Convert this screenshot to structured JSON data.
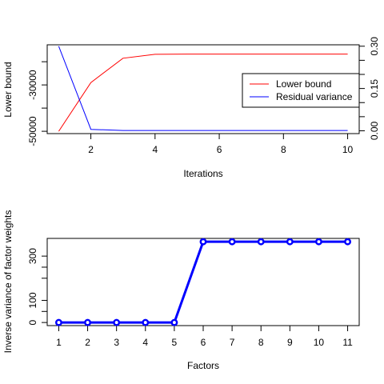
{
  "chart_data": [
    {
      "type": "line",
      "xlabel": "Iterations",
      "ylabel_left": "Lower bound",
      "ylabel_right": "",
      "x_ticks": [
        2,
        4,
        6,
        8,
        10
      ],
      "y_left_ticks": [
        -50000,
        -30000
      ],
      "y_left_minor_ticks": [
        -40000,
        -20000
      ],
      "y_right_ticks": [
        0.0,
        0.15,
        0.3
      ],
      "y_right_tick_labels": [
        "0.00",
        "0.15",
        "0.30"
      ],
      "y_right_minor_ticks": [
        0.05,
        0.1,
        0.2,
        0.25
      ],
      "xlim": [
        0.64,
        10.36
      ],
      "y_left_lim": [
        -51000,
        -12700
      ],
      "y_right_lim": [
        -0.01,
        0.305
      ],
      "legend_position": "right",
      "series": [
        {
          "name": "Lower bound",
          "axis": "left",
          "color": "#ff0000",
          "x": [
            1,
            2,
            3,
            4,
            5,
            6,
            7,
            8,
            9,
            10
          ],
          "values": [
            -50000,
            -29000,
            -18500,
            -16800,
            -16700,
            -16700,
            -16700,
            -16700,
            -16700,
            -16700
          ]
        },
        {
          "name": "Residual variance",
          "axis": "right",
          "color": "#0000ff",
          "x": [
            1,
            2,
            3,
            4,
            5,
            6,
            7,
            8,
            9,
            10
          ],
          "values": [
            0.3,
            0.005,
            0.001,
            0.001,
            0.001,
            0.001,
            0.001,
            0.001,
            0.001,
            0.001
          ]
        }
      ]
    },
    {
      "type": "line",
      "xlabel": "Factors",
      "ylabel": "Inverse variance of factor weights",
      "x_ticks": [
        1,
        2,
        3,
        4,
        5,
        6,
        7,
        8,
        9,
        10,
        11
      ],
      "y_ticks": [
        0,
        100,
        300
      ],
      "y_minor_ticks": [
        50,
        200,
        250
      ],
      "xlim": [
        0.6,
        11.4
      ],
      "ylim": [
        -14,
        380
      ],
      "color": "#0000ff",
      "markers": "circle",
      "series": [
        {
          "name": "",
          "x": [
            1,
            2,
            3,
            4,
            5,
            6,
            7,
            8,
            9,
            10,
            11
          ],
          "values": [
            0,
            0,
            0,
            0,
            0,
            365,
            365,
            365,
            365,
            365,
            365
          ]
        }
      ]
    }
  ]
}
